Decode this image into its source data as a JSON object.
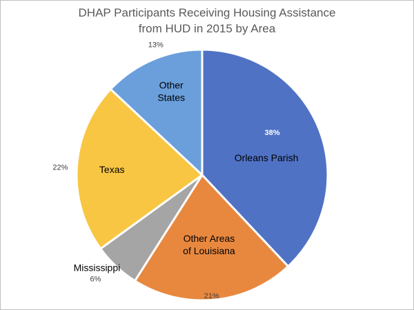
{
  "chart_data": {
    "type": "pie",
    "title": "DHAP Participants Receiving Housing Assistance from HUD in 2015 by Area",
    "title_lines": [
      "DHAP Participants Receiving Housing Assistance",
      "from HUD in 2015 by Area"
    ],
    "legend": "none",
    "slices": [
      {
        "label": "Orleans Parish",
        "value": 38,
        "value_label": "38%",
        "color": "#4f72c4",
        "label_lines": [
          "Orleans Parish"
        ]
      },
      {
        "label": "Other Areas of Louisiana",
        "value": 21,
        "value_label": "21%",
        "color": "#e8883f",
        "label_lines": [
          "Other Areas",
          "of Louisiana"
        ]
      },
      {
        "label": "Mississippi",
        "value": 6,
        "value_label": "6%",
        "color": "#a5a5a5",
        "label_lines": [
          "Mississippi"
        ]
      },
      {
        "label": "Texas",
        "value": 22,
        "value_label": "22%",
        "color": "#f8c642",
        "label_lines": [
          "Texas"
        ]
      },
      {
        "label": "Other States",
        "value": 13,
        "value_label": "13%",
        "color": "#6a9fdb",
        "label_lines": [
          "Other",
          "States"
        ]
      }
    ]
  }
}
